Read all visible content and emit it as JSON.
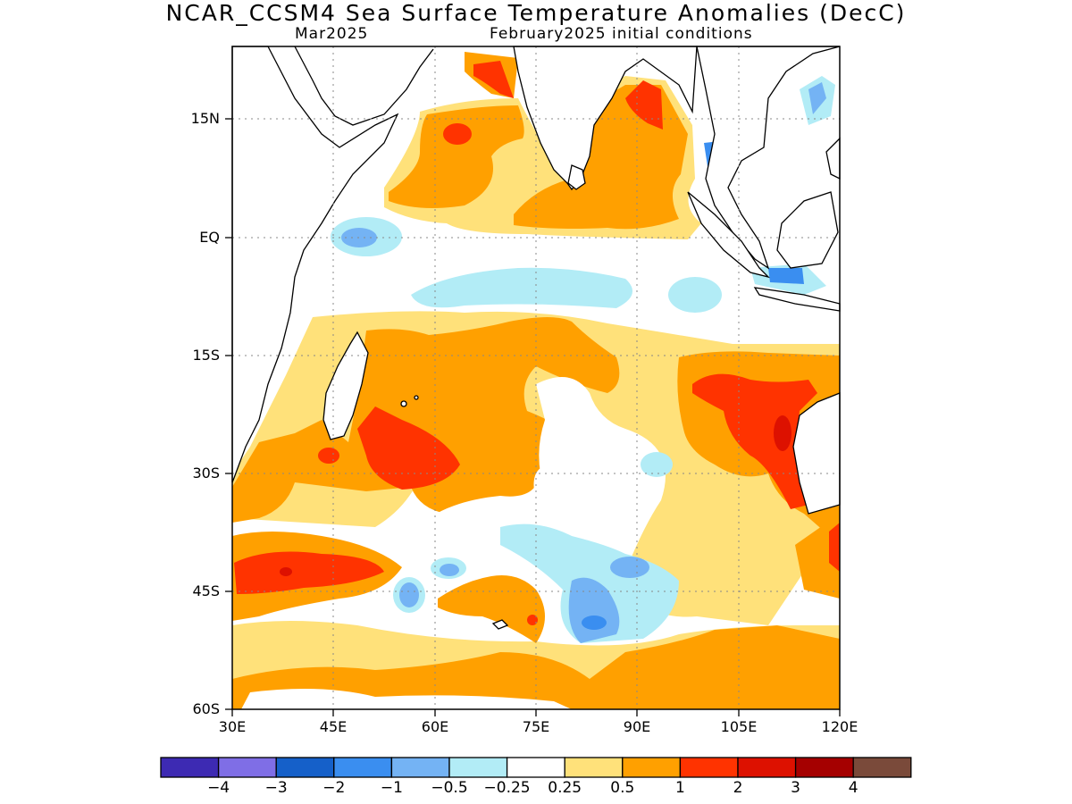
{
  "title": "NCAR_CCSM4 Sea Surface Temperature Anomalies (DecC)",
  "subtitle_left": "Mar2025",
  "subtitle_right": "February2025 initial conditions",
  "lat_labels": [
    "15N",
    "EQ",
    "15S",
    "30S",
    "45S",
    "60S"
  ],
  "lon_labels": [
    "30E",
    "45E",
    "60E",
    "75E",
    "90E",
    "105E",
    "120E"
  ],
  "colorbar": {
    "colors": [
      "#3d2ab3",
      "#7f6ee6",
      "#1560c9",
      "#3a8ef0",
      "#74b3f4",
      "#b2ecf6",
      "#ffffff",
      "#ffe17a",
      "#ffa000",
      "#ff3300",
      "#dd1100",
      "#a50000",
      "#7a4a3a"
    ],
    "labels": [
      "−4",
      "−3",
      "−2",
      "−1",
      "−0.5",
      "−0.25",
      "0.25",
      "0.5",
      "1",
      "2",
      "3",
      "4"
    ]
  },
  "colors": {
    "light_blue": "#b2ecf6",
    "mid_blue": "#74b3f4",
    "blue": "#3a8ef0",
    "yellow": "#ffe17a",
    "orange": "#ffa000",
    "red": "#ff3300",
    "dark_red": "#dd1100"
  }
}
